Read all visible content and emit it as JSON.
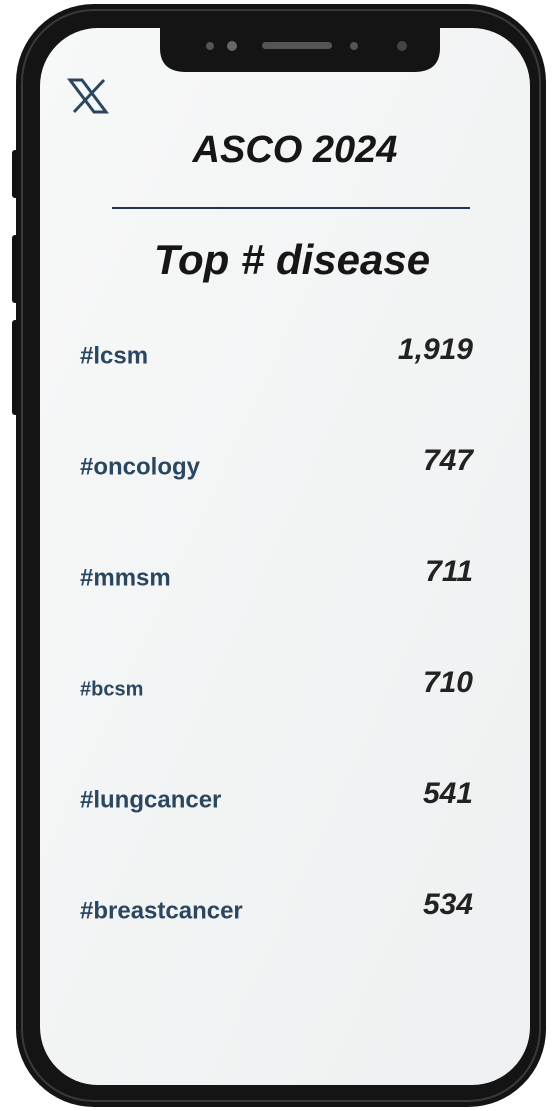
{
  "header": {
    "title": "ASCO 2024",
    "subtitle": "Top # disease"
  },
  "table": {
    "rows": [
      [
        "#lcsm",
        "1,919"
      ],
      [
        "#oncology",
        "747"
      ],
      [
        "#mmsm",
        "711"
      ],
      [
        "#bcsm",
        "710"
      ],
      [
        "#lungcancer",
        "541"
      ],
      [
        "#breastcancer",
        "534"
      ]
    ]
  }
}
